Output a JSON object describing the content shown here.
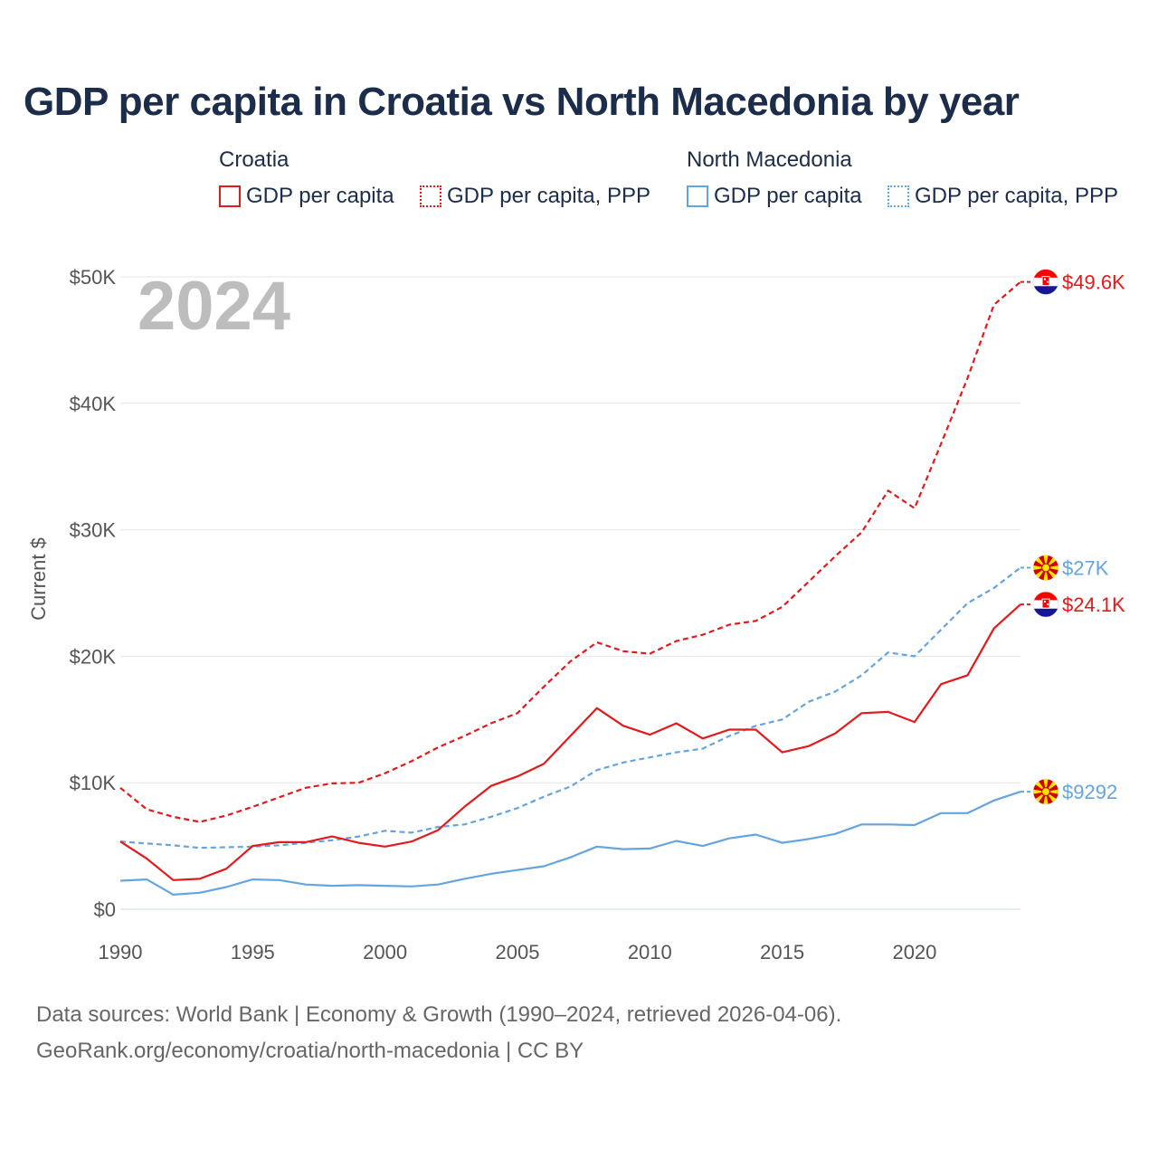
{
  "title": "GDP per capita in Croatia vs North Macedonia by year",
  "legend": {
    "croatia_title": "Croatia",
    "north_macedonia_title": "North Macedonia",
    "items": [
      {
        "label": "GDP per capita",
        "color": "#e31a1c",
        "style": "solid"
      },
      {
        "label": "GDP per capita, PPP",
        "color": "#e31a1c",
        "style": "dotted"
      },
      {
        "label": "GDP per capita",
        "color": "#64a5e0",
        "style": "solid"
      },
      {
        "label": "GDP per capita, PPP",
        "color": "#64a5e0",
        "style": "dotted"
      }
    ]
  },
  "footer": {
    "line1": "Data sources: World Bank | Economy & Growth (1990–2024, retrieved 2026-04-06).",
    "line2": "GeoRank.org/economy/croatia/north-macedonia | CC BY"
  },
  "chart_data": {
    "type": "line",
    "year_label": "2024",
    "ylabel": "Current $",
    "xlim": [
      1990,
      2024
    ],
    "ylim": [
      0,
      50000
    ],
    "x_ticks": [
      "1990",
      "1995",
      "2000",
      "2005",
      "2010",
      "2015",
      "2020"
    ],
    "y_ticks": [
      {
        "value": 0,
        "label": "$0"
      },
      {
        "value": 10000,
        "label": "$10K"
      },
      {
        "value": 20000,
        "label": "$20K"
      },
      {
        "value": 30000,
        "label": "$30K"
      },
      {
        "value": 40000,
        "label": "$40K"
      },
      {
        "value": 50000,
        "label": "$50K"
      }
    ],
    "x": [
      1990,
      1991,
      1992,
      1993,
      1994,
      1995,
      1996,
      1997,
      1998,
      1999,
      2000,
      2001,
      2002,
      2003,
      2004,
      2005,
      2006,
      2007,
      2008,
      2009,
      2010,
      2011,
      2012,
      2013,
      2014,
      2015,
      2016,
      2017,
      2018,
      2019,
      2020,
      2021,
      2022,
      2023,
      2024
    ],
    "series": [
      {
        "name": "Croatia GDP per capita, PPP",
        "country": "Croatia",
        "color": "#e31a1c",
        "dash": true,
        "end_label": "$49.6K",
        "values": [
          9600,
          7900,
          7300,
          6900,
          7400,
          8100,
          8850,
          9600,
          9950,
          10000,
          10750,
          11700,
          12800,
          13700,
          14700,
          15500,
          17600,
          19600,
          21100,
          20400,
          20200,
          21200,
          21700,
          22500,
          22800,
          23900,
          25900,
          27900,
          29800,
          33100,
          31700,
          36800,
          42000,
          47800,
          49600
        ]
      },
      {
        "name": "North Macedonia GDP per capita, PPP",
        "country": "North Macedonia",
        "color": "#64a5e0",
        "dash": true,
        "end_label": "$27K",
        "values": [
          5350,
          5200,
          5050,
          4850,
          4900,
          4950,
          5050,
          5250,
          5450,
          5750,
          6200,
          6050,
          6500,
          6700,
          7300,
          8000,
          8900,
          9700,
          11000,
          11600,
          12000,
          12400,
          12700,
          13700,
          14500,
          15000,
          16400,
          17200,
          18500,
          20300,
          20000,
          22100,
          24200,
          25400,
          27000
        ]
      },
      {
        "name": "Croatia GDP per capita",
        "country": "Croatia",
        "color": "#e31a1c",
        "dash": false,
        "end_label": "$24.1K",
        "values": [
          5350,
          4000,
          2300,
          2400,
          3200,
          5000,
          5300,
          5300,
          5750,
          5250,
          4950,
          5350,
          6250,
          8100,
          9750,
          10500,
          11500,
          13700,
          15900,
          14500,
          13800,
          14700,
          13500,
          14200,
          14200,
          12400,
          12900,
          13900,
          15500,
          15600,
          14800,
          17800,
          18500,
          22200,
          24100
        ]
      },
      {
        "name": "North Macedonia GDP per capita",
        "country": "North Macedonia",
        "color": "#64a5e0",
        "dash": false,
        "end_label": "$9292",
        "values": [
          2250,
          2350,
          1150,
          1300,
          1750,
          2350,
          2300,
          1950,
          1850,
          1900,
          1850,
          1800,
          1950,
          2400,
          2800,
          3100,
          3400,
          4100,
          4950,
          4750,
          4800,
          5400,
          5000,
          5600,
          5900,
          5250,
          5550,
          5950,
          6700,
          6700,
          6650,
          7600,
          7600,
          8600,
          9292
        ]
      }
    ]
  }
}
